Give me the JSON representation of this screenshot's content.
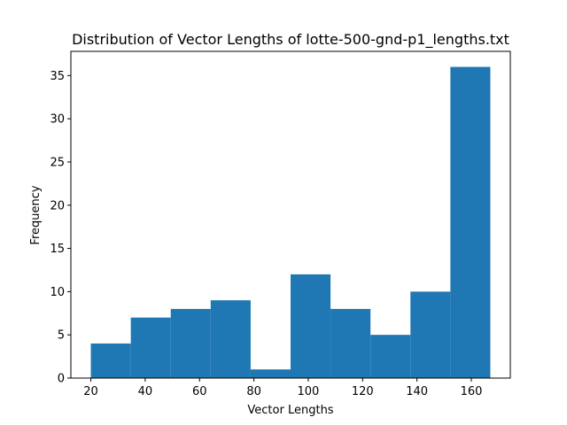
{
  "chart_data": {
    "type": "bar",
    "title": "Distribution of Vector Lengths of lotte-500-gnd-p1_lengths.txt",
    "xlabel": "Vector Lengths",
    "ylabel": "Frequency",
    "bins": [
      {
        "x0": 20,
        "x1": 34.7,
        "count": 4
      },
      {
        "x0": 34.7,
        "x1": 49.4,
        "count": 7
      },
      {
        "x0": 49.4,
        "x1": 64.1,
        "count": 8
      },
      {
        "x0": 64.1,
        "x1": 78.8,
        "count": 9
      },
      {
        "x0": 78.8,
        "x1": 93.5,
        "count": 1
      },
      {
        "x0": 93.5,
        "x1": 108.2,
        "count": 12
      },
      {
        "x0": 108.2,
        "x1": 122.9,
        "count": 8
      },
      {
        "x0": 122.9,
        "x1": 137.6,
        "count": 5
      },
      {
        "x0": 137.6,
        "x1": 152.3,
        "count": 10
      },
      {
        "x0": 152.3,
        "x1": 167,
        "count": 36
      }
    ],
    "xlim": [
      12.65,
      174.35
    ],
    "ylim": [
      0,
      37.8
    ],
    "xticks": [
      20,
      40,
      60,
      80,
      100,
      120,
      140,
      160
    ],
    "yticks": [
      0,
      5,
      10,
      15,
      20,
      25,
      30,
      35
    ],
    "bar_color": "#1f77b4",
    "grid": false,
    "legend": "none"
  }
}
